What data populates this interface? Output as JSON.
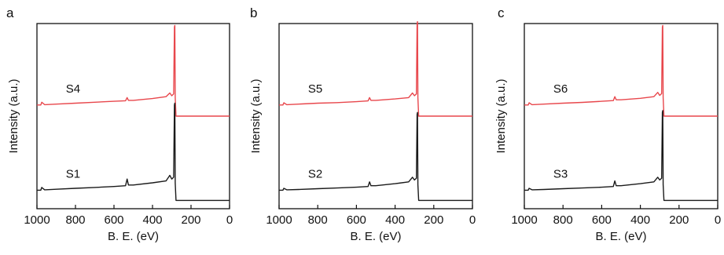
{
  "chart_data": [
    {
      "type": "line",
      "panel_label": "a",
      "xlabel": "B. E. (eV)",
      "ylabel": "Intensity (a.u.)",
      "xlim": [
        1000,
        0
      ],
      "x_ticks": [
        1000,
        800,
        600,
        400,
        200,
        0
      ],
      "x_reversed": true,
      "y_ticks_shown": false,
      "grid": false,
      "series": [
        {
          "name": "S4",
          "color": "#e8474c",
          "x": [
            1000,
            980,
            975,
            960,
            900,
            800,
            700,
            600,
            540,
            532,
            525,
            500,
            400,
            330,
            310,
            300,
            290,
            286,
            284,
            282,
            278,
            260,
            200,
            100,
            0
          ],
          "y": [
            0.56,
            0.56,
            0.575,
            0.562,
            0.565,
            0.57,
            0.575,
            0.58,
            0.583,
            0.6,
            0.585,
            0.585,
            0.595,
            0.605,
            0.625,
            0.61,
            0.62,
            0.98,
            0.99,
            0.6,
            0.5,
            0.5,
            0.5,
            0.5,
            0.5
          ]
        },
        {
          "name": "S1",
          "color": "#1a1a1a",
          "x": [
            1000,
            980,
            975,
            960,
            900,
            800,
            700,
            600,
            540,
            532,
            525,
            500,
            400,
            330,
            310,
            300,
            290,
            286,
            284,
            282,
            278,
            260,
            200,
            100,
            0
          ],
          "y": [
            0.1,
            0.1,
            0.115,
            0.102,
            0.105,
            0.11,
            0.115,
            0.12,
            0.124,
            0.16,
            0.128,
            0.128,
            0.14,
            0.15,
            0.18,
            0.16,
            0.17,
            0.56,
            0.57,
            0.14,
            0.045,
            0.045,
            0.045,
            0.045,
            0.045
          ]
        }
      ]
    },
    {
      "type": "line",
      "panel_label": "b",
      "xlabel": "B. E. (eV)",
      "ylabel": "Intensity (a.u.)",
      "xlim": [
        1000,
        0
      ],
      "x_ticks": [
        1000,
        800,
        600,
        400,
        200,
        0
      ],
      "x_reversed": true,
      "y_ticks_shown": false,
      "grid": false,
      "series": [
        {
          "name": "S5",
          "color": "#e8474c",
          "x": [
            1000,
            980,
            975,
            960,
            900,
            800,
            700,
            600,
            540,
            532,
            525,
            500,
            400,
            330,
            310,
            300,
            290,
            286,
            284,
            282,
            278,
            260,
            200,
            100,
            0
          ],
          "y": [
            0.56,
            0.56,
            0.572,
            0.562,
            0.565,
            0.57,
            0.573,
            0.578,
            0.582,
            0.6,
            0.585,
            0.585,
            0.593,
            0.6,
            0.625,
            0.61,
            0.62,
            1.0,
            1.01,
            0.6,
            0.5,
            0.5,
            0.5,
            0.5,
            0.5
          ]
        },
        {
          "name": "S2",
          "color": "#1a1a1a",
          "x": [
            1000,
            980,
            975,
            960,
            900,
            800,
            700,
            600,
            540,
            532,
            525,
            500,
            400,
            330,
            310,
            300,
            290,
            286,
            284,
            282,
            278,
            260,
            200,
            100,
            0
          ],
          "y": [
            0.1,
            0.1,
            0.11,
            0.102,
            0.104,
            0.108,
            0.112,
            0.116,
            0.12,
            0.145,
            0.124,
            0.124,
            0.135,
            0.145,
            0.17,
            0.155,
            0.165,
            0.51,
            0.52,
            0.13,
            0.045,
            0.045,
            0.045,
            0.045,
            0.045
          ]
        }
      ]
    },
    {
      "type": "line",
      "panel_label": "c",
      "xlabel": "B. E. (eV)",
      "ylabel": "Intensity (a.u.)",
      "xlim": [
        1000,
        0
      ],
      "x_ticks": [
        1000,
        800,
        600,
        400,
        200,
        0
      ],
      "x_reversed": true,
      "y_ticks_shown": false,
      "grid": false,
      "series": [
        {
          "name": "S6",
          "color": "#e8474c",
          "x": [
            1000,
            980,
            975,
            960,
            900,
            800,
            700,
            600,
            540,
            532,
            525,
            500,
            400,
            330,
            310,
            300,
            290,
            286,
            284,
            282,
            278,
            260,
            200,
            100,
            0
          ],
          "y": [
            0.56,
            0.56,
            0.572,
            0.562,
            0.565,
            0.57,
            0.574,
            0.58,
            0.584,
            0.605,
            0.588,
            0.588,
            0.596,
            0.605,
            0.628,
            0.612,
            0.622,
            0.98,
            0.99,
            0.6,
            0.5,
            0.5,
            0.5,
            0.5,
            0.5
          ]
        },
        {
          "name": "S3",
          "color": "#1a1a1a",
          "x": [
            1000,
            980,
            975,
            960,
            900,
            800,
            700,
            600,
            540,
            532,
            525,
            500,
            400,
            330,
            310,
            300,
            290,
            286,
            284,
            282,
            278,
            260,
            200,
            100,
            0
          ],
          "y": [
            0.1,
            0.1,
            0.11,
            0.102,
            0.104,
            0.108,
            0.112,
            0.116,
            0.12,
            0.15,
            0.124,
            0.124,
            0.135,
            0.145,
            0.17,
            0.155,
            0.165,
            0.52,
            0.53,
            0.13,
            0.045,
            0.045,
            0.045,
            0.045,
            0.045
          ]
        }
      ]
    }
  ]
}
